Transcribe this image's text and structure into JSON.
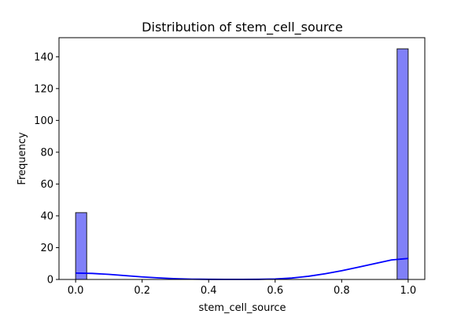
{
  "chart_data": {
    "type": "bar",
    "title": "Distribution of stem_cell_source",
    "xlabel": "stem_cell_source",
    "ylabel": "Frequency",
    "xlim": [
      -0.05,
      1.05
    ],
    "ylim": [
      0,
      152
    ],
    "x_ticks": [
      0.0,
      0.2,
      0.4,
      0.6,
      0.8,
      1.0
    ],
    "x_tick_labels": [
      "0.0",
      "0.2",
      "0.4",
      "0.6",
      "0.8",
      "1.0"
    ],
    "y_ticks": [
      0,
      20,
      40,
      60,
      80,
      100,
      120,
      140
    ],
    "y_tick_labels": [
      "0",
      "20",
      "40",
      "60",
      "80",
      "100",
      "120",
      "140"
    ],
    "bins": [
      {
        "x0": 0.0,
        "x1": 0.0333,
        "count": 42
      },
      {
        "x0": 0.9667,
        "x1": 1.0,
        "count": 145
      }
    ],
    "kde_curve": [
      [
        0.0,
        4.0
      ],
      [
        0.05,
        3.8
      ],
      [
        0.1,
        3.2
      ],
      [
        0.15,
        2.4
      ],
      [
        0.2,
        1.6
      ],
      [
        0.25,
        1.0
      ],
      [
        0.3,
        0.5
      ],
      [
        0.35,
        0.2
      ],
      [
        0.4,
        0.1
      ],
      [
        0.45,
        0.05
      ],
      [
        0.5,
        0.05
      ],
      [
        0.55,
        0.1
      ],
      [
        0.6,
        0.3
      ],
      [
        0.65,
        0.9
      ],
      [
        0.7,
        2.0
      ],
      [
        0.75,
        3.6
      ],
      [
        0.8,
        5.5
      ],
      [
        0.85,
        7.7
      ],
      [
        0.9,
        10.0
      ],
      [
        0.95,
        12.3
      ],
      [
        1.0,
        13.2
      ]
    ],
    "bar_color": "#8080f8",
    "bar_edge_color": "#1a1a1a",
    "kde_color": "#0000ff",
    "grid": false,
    "legend": "none"
  }
}
